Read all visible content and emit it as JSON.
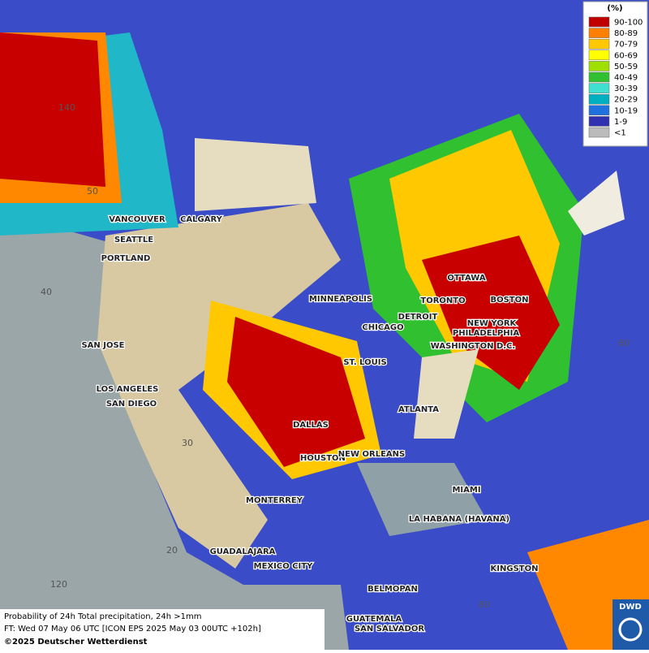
{
  "legend": {
    "title": "(%)",
    "entries": [
      {
        "label": "90-100",
        "color": "#c00000"
      },
      {
        "label": "80-89",
        "color": "#ff8000"
      },
      {
        "label": "70-79",
        "color": "#ffc800"
      },
      {
        "label": "60-69",
        "color": "#ffff00"
      },
      {
        "label": "50-59",
        "color": "#a0e000"
      },
      {
        "label": "40-49",
        "color": "#30c030"
      },
      {
        "label": "30-39",
        "color": "#40e0d0"
      },
      {
        "label": "20-29",
        "color": "#00b0c0"
      },
      {
        "label": "10-19",
        "color": "#2070e0"
      },
      {
        "label": "1-9",
        "color": "#3030b0"
      },
      {
        "label": "<1",
        "color": "#bbbbbb"
      }
    ]
  },
  "cities": [
    "VANCOUVER",
    "CALGARY",
    "SEATTLE",
    "PORTLAND",
    "SAN JOSE",
    "LOS ANGELES",
    "SAN DIEGO",
    "MINNEAPOLIS",
    "CHICAGO",
    "ST. LOUIS",
    "DETROIT",
    "TORONTO",
    "OTTAWA",
    "BOSTON",
    "NEW YORK",
    "PHILADELPHIA",
    "WASHINGTON D.C.",
    "ATLANTA",
    "DALLAS",
    "HOUSTON",
    "NEW ORLEANS",
    "MIAMI",
    "MONTERREY",
    "LA HABANA (HAVANA)",
    "GUADALAJARA",
    "MEXICO CITY",
    "BELMOPAN",
    "KINGSTON",
    "GUATEMALA",
    "SAN SALVADOR"
  ],
  "grid_labels": [
    140,
    50,
    40,
    30,
    20,
    120,
    60,
    80
  ],
  "footer": {
    "line1": "Probability of 24h Total precipitation, 24h >1mm",
    "line2": "FT: Wed 07 May 06 UTC [ICON EPS 2025 May 03 00UTC +102h]",
    "line3": "©2025 Deutscher Wetterdienst"
  },
  "logo": "DWD"
}
